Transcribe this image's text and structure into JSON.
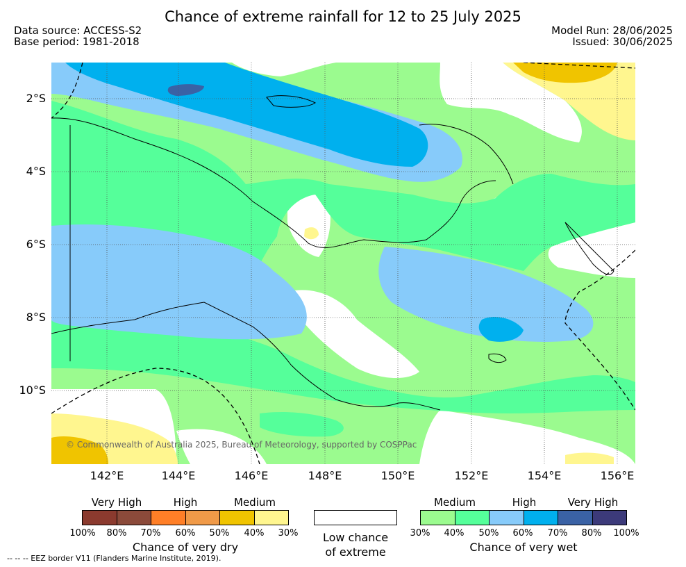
{
  "header": {
    "title": "Chance of extreme rainfall for 12 to 25 July 2025",
    "data_source": "Data source: ACCESS-S2",
    "base_period": "Base period: 1981-2018",
    "model_run": "Model Run: 28/06/2025",
    "issued": "Issued: 30/06/2025"
  },
  "map": {
    "lat_labels": [
      "2°S",
      "4°S",
      "6°S",
      "8°S",
      "10°S"
    ],
    "lon_labels": [
      "142°E",
      "144°E",
      "146°E",
      "148°E",
      "150°E",
      "152°E",
      "154°E",
      "156°E"
    ],
    "copyright": "© Commonwealth of Australia 2025, Bureau of Meteorology, supported by COSPPac",
    "colors": {
      "dry_100": "#8b3a2e",
      "dry_80": "#8b4a3a",
      "dry_70": "#ff7f27",
      "dry_60": "#f09a48",
      "dry_50": "#f0c400",
      "dry_40": "#fff68f",
      "low": "#ffffff",
      "wet_30": "#9bfb8f",
      "wet_40": "#55ff9a",
      "wet_50": "#87cbfa",
      "wet_60": "#00b0ee",
      "wet_70": "#3a62a5",
      "wet_80": "#3c3a7a"
    }
  },
  "legend": {
    "dry": {
      "levels": [
        "Very High",
        "High",
        "Medium"
      ],
      "percents": [
        "100%",
        "80%",
        "70%",
        "60%",
        "50%",
        "40%",
        "30%"
      ],
      "title": "Chance of very dry"
    },
    "low": {
      "line1": "Low chance",
      "line2": "of extreme"
    },
    "wet": {
      "levels": [
        "Medium",
        "High",
        "Very High"
      ],
      "percents": [
        "30%",
        "40%",
        "50%",
        "60%",
        "70%",
        "80%",
        "100%"
      ],
      "title": "Chance of very wet"
    }
  },
  "footer": {
    "eez_note": "--  --  -- EEZ border V11 (Flanders Marine Institute, 2019)."
  }
}
